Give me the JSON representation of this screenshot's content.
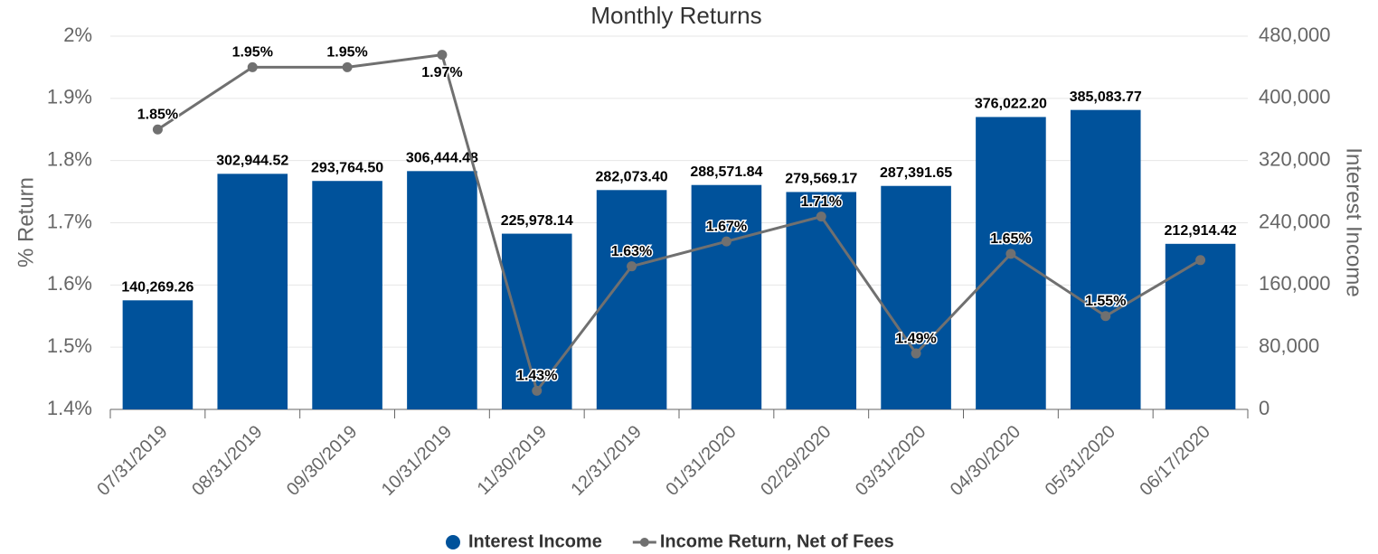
{
  "chart_data": {
    "type": "bar_line",
    "title": "Monthly Returns",
    "y_label": "% Return",
    "y2_label": "Interest Income",
    "categories": [
      "07/31/2019",
      "08/31/2019",
      "09/30/2019",
      "10/31/2019",
      "11/30/2019",
      "12/31/2019",
      "01/31/2020",
      "02/29/2020",
      "03/31/2020",
      "04/30/2020",
      "05/31/2020",
      "06/17/2020"
    ],
    "ylim": [
      1.4,
      2
    ],
    "yticks": [
      {
        "value": 1.4,
        "label": "1.4%"
      },
      {
        "value": 1.5,
        "label": "1.5%"
      },
      {
        "value": 1.6,
        "label": "1.6%"
      },
      {
        "value": 1.7,
        "label": "1.7%"
      },
      {
        "value": 1.8,
        "label": "1.8%"
      },
      {
        "value": 1.9,
        "label": "1.9%"
      },
      {
        "value": 2,
        "label": "2%"
      }
    ],
    "y2lim": [
      0,
      480000
    ],
    "y2ticks": [
      0,
      {
        "value": 80000,
        "label": "80,000"
      },
      {
        "value": 160000,
        "label": "160,000"
      },
      {
        "value": 240000,
        "label": "240,000"
      },
      {
        "value": 320000,
        "label": "320,000"
      },
      {
        "value": 400000,
        "label": "400,000"
      },
      {
        "value": 480000,
        "label": "480,000"
      }
    ],
    "grid": true,
    "legend": "bottom",
    "series": [
      {
        "name": "Interest Income",
        "type": "bar",
        "axis": "y2",
        "color": "#00529b",
        "values": [
          140269.26,
          302944.52,
          293764.5,
          306444.48,
          225978.14,
          282073.4,
          288571.84,
          279569.17,
          287391.65,
          376022.2,
          385083.77,
          212914.42
        ],
        "value_labels": [
          "140,269.26",
          "302,944.52",
          "293,764.50",
          "306,444.48",
          "225,978.14",
          "282,073.40",
          "288,571.84",
          "279,569.17",
          "287,391.65",
          "376,022.20",
          "385,083.77",
          "212,914.42"
        ]
      },
      {
        "name": "Income Return, Net of Fees",
        "type": "line",
        "axis": "y",
        "color": "#707070",
        "values": [
          1.85,
          1.95,
          1.95,
          1.97,
          1.43,
          1.63,
          1.67,
          1.71,
          1.49,
          1.65,
          1.55,
          1.64
        ],
        "value_labels": [
          "1.85%",
          "1.95%",
          "1.95%",
          "1.97%",
          "1.43%",
          "1.63%",
          "1.67%",
          "1.71%",
          "1.49%",
          "1.65%",
          "1.55%",
          null
        ]
      }
    ]
  }
}
